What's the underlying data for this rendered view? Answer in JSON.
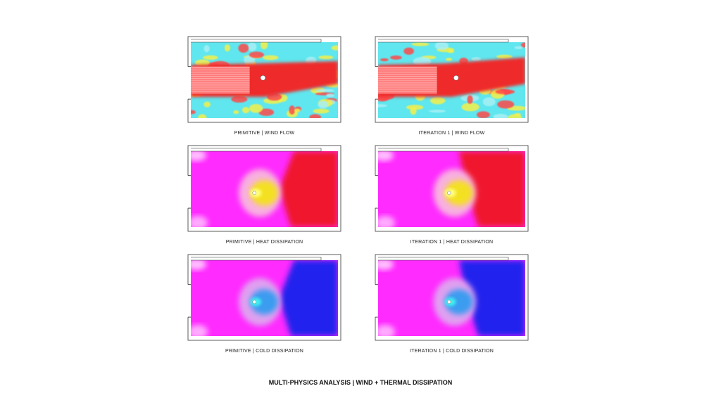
{
  "panels": [
    {
      "caption": "PRIMITIVE | WIND FLOW"
    },
    {
      "caption": "ITERATION 1 | WIND FLOW"
    },
    {
      "caption": "PRIMITIVE | HEAT DISSIPATION"
    },
    {
      "caption": "ITERATION 1 | HEAT DISSIPATION"
    },
    {
      "caption": "PRIMITIVE | COLD DISSIPATION"
    },
    {
      "caption": "ITERATION 1 | COLD DISSIPATION"
    }
  ],
  "footer": {
    "title": "MULTI-PHYSICS ANALYSIS | WIND + THERMAL DISSIPATION"
  }
}
